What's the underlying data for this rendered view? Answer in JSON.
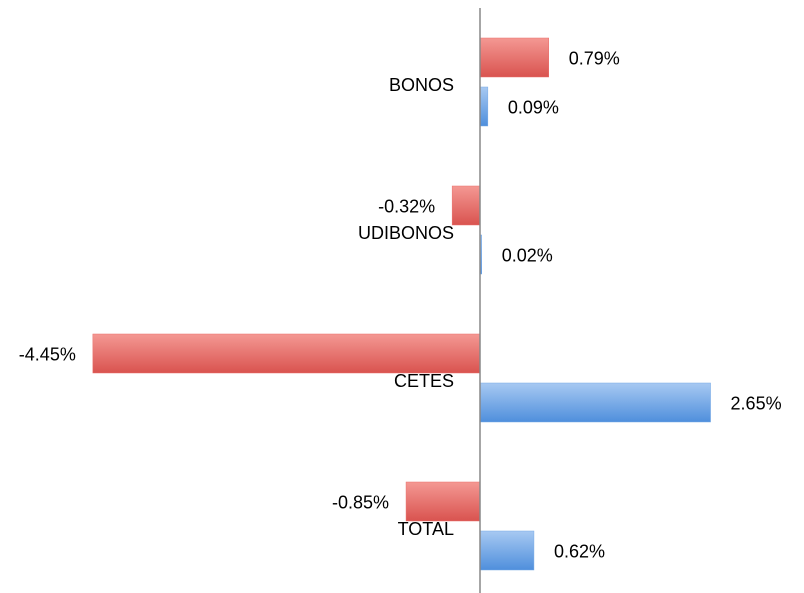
{
  "chart_data": {
    "type": "bar",
    "orientation": "horizontal",
    "categories": [
      "BONOS",
      "UDIBONOS",
      "CETES",
      "TOTAL"
    ],
    "series": [
      {
        "color": "#e9706c",
        "values": [
          0.79,
          -0.32,
          -4.45,
          -0.85
        ],
        "value_labels": [
          "0.79%",
          "-0.32%",
          "-4.45%",
          "-0.85%"
        ]
      },
      {
        "color": "#78aae6",
        "values": [
          0.09,
          0.02,
          2.65,
          0.62
        ],
        "value_labels": [
          "0.09%",
          "0.02%",
          "2.65%",
          "0.62%"
        ]
      }
    ],
    "xlim": [
      -5,
      3.5
    ]
  }
}
